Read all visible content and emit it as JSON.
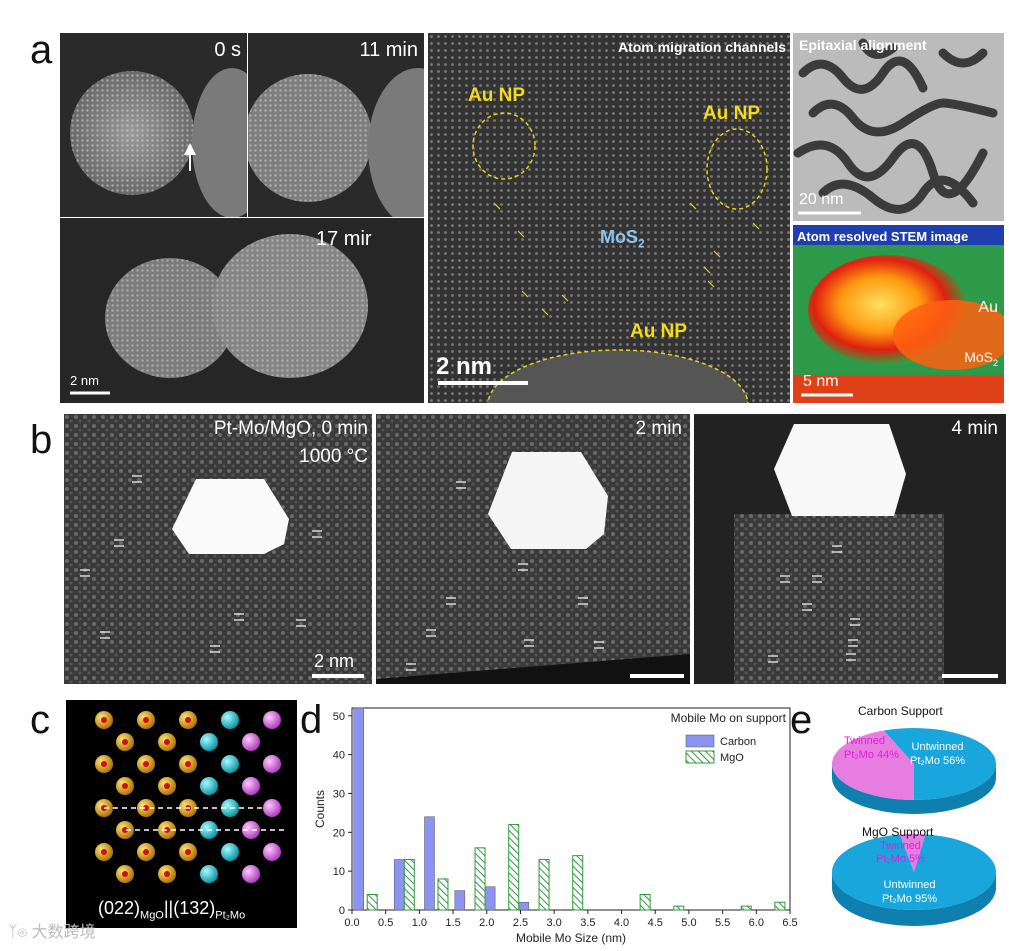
{
  "panel_letters": {
    "a": "a",
    "b": "b",
    "c": "c",
    "d": "d",
    "e": "e"
  },
  "panel_a": {
    "t0": "0 s",
    "t11": "11 min",
    "t17": "17 mir",
    "scale_left": "2 nm",
    "migration_title": "Atom migration channels",
    "au_np_label": "Au NP",
    "mos2_label": "MoS",
    "mos2_sub": "2",
    "scale_mid": "2 nm",
    "epitaxial_title": "Epitaxial alignment",
    "scale_epi": "20 nm",
    "stem_title": "Atom resolved STEM image",
    "au_label": "Au",
    "mos2_small": "MoS",
    "mos2_small_sub": "2",
    "scale_stem": "5 nm"
  },
  "panel_b": {
    "title_line1": "Pt-Mo/MgO, 0 min",
    "title_line2": "1000 °C",
    "t2": "2 min",
    "t4": "4 min",
    "scale": "2 nm"
  },
  "panel_c": {
    "rel_a": "(022)",
    "rel_a_sub": "MgO",
    "rel_sep": "||",
    "rel_b": "(132)",
    "rel_b_sub": "Pt₂Mo"
  },
  "panel_e": {
    "carbon_title": "Carbon Support",
    "carbon_twinned": "Twinned",
    "carbon_twinned_2": "Pt₂Mo 44%",
    "carbon_untwinned": "Untwinned",
    "carbon_untwinned_2": "Pt₂Mo 56%",
    "mgo_title": "MgO Support",
    "mgo_twinned": "Twinned",
    "mgo_twinned_2": "Pt₂Mo 5%",
    "mgo_untwinned": "Untwinned",
    "mgo_untwinned_2": "Pt₂Mo 95%",
    "colors": {
      "twinned": "#e77de0",
      "untwinned": "#19a6dd",
      "twinned_text": "#e020d6"
    }
  },
  "watermark": "大数跨境",
  "chart_data": [
    {
      "type": "bar",
      "title": "Mobile Mo on support",
      "xlabel": "Mobile Mo Size (nm)",
      "ylabel": "Counts",
      "xlim": [
        0.0,
        6.5
      ],
      "ylim": [
        0,
        52
      ],
      "xticks": [
        "0.0",
        "0.5",
        "1.0",
        "1.5",
        "2.0",
        "2.5",
        "3.0",
        "3.5",
        "4.0",
        "4.5",
        "5.0",
        "5.5",
        "6.0",
        "6.5"
      ],
      "yticks": [
        "0",
        "10",
        "20",
        "30",
        "40",
        "50"
      ],
      "legend_position": "top-right",
      "series": [
        {
          "name": "Carbon",
          "color": "#8c93f0",
          "x": [
            0.1,
            0.7,
            1.15,
            1.6,
            2.05,
            2.55
          ],
          "values": [
            52,
            13,
            24,
            5,
            6,
            2
          ]
        },
        {
          "name": "MgO",
          "color": "#2e9a3d",
          "x": [
            0.3,
            0.85,
            1.35,
            1.9,
            2.4,
            2.85,
            3.35,
            4.35,
            4.85,
            5.85,
            6.35
          ],
          "values": [
            4,
            13,
            8,
            16,
            22,
            13,
            14,
            4,
            1,
            1,
            2
          ]
        }
      ]
    },
    {
      "type": "pie",
      "title": "Carbon Support",
      "categories": [
        "Twinned Pt₂Mo",
        "Untwinned Pt₂Mo"
      ],
      "values": [
        44,
        56
      ]
    },
    {
      "type": "pie",
      "title": "MgO Support",
      "categories": [
        "Twinned Pt₂Mo",
        "Untwinned Pt₂Mo"
      ],
      "values": [
        5,
        95
      ]
    }
  ]
}
